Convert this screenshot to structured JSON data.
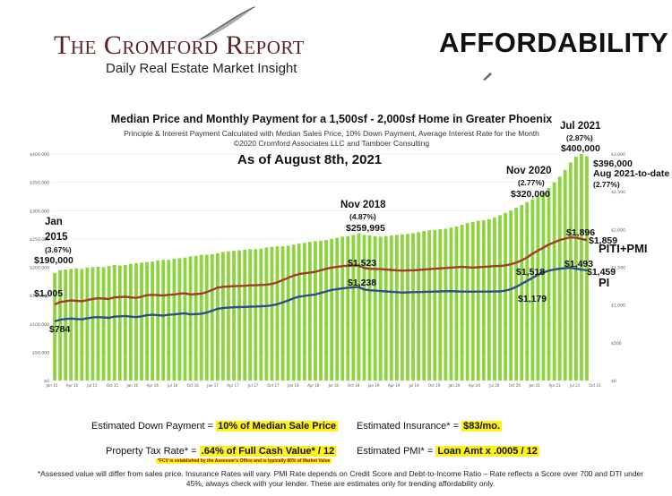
{
  "header": {
    "report_title": "The Cromford Report",
    "report_subtitle": "Daily Real Estate Market Insight",
    "page_heading": "AFFORDABILITY",
    "logo_icon": "quill-pen-icon"
  },
  "colors": {
    "price_bar": "#8cd43c",
    "piti_line": "#a33a2e",
    "pi_line": "#2e4d8a",
    "highlight": "#fff21a"
  },
  "chart_data": {
    "type": "bar",
    "title": "Median Price and Monthly Payment for a 1,500sf - 2,000sf Home in Greater Phoenix",
    "subtitle_lines": [
      "Principle & Interest Payment Calculated with Median Sales Price, 10% Down Payment, Average Interest Rate for the Month",
      "©2020 Cromford Associates LLC and Tamboer Consulting"
    ],
    "as_of": "As of August 8th, 2021",
    "left_axis": {
      "ylim": [
        0,
        400000
      ],
      "ticks": [
        "$0",
        "$50,000",
        "$100,000",
        "$150,000",
        "$200,000",
        "$250,000",
        "$300,000",
        "$350,000",
        "$400,000"
      ]
    },
    "right_axis": {
      "ylim": [
        0,
        3000
      ],
      "ticks": [
        "$0",
        "$500",
        "$1,000",
        "$1,500",
        "$2,000",
        "$2,500",
        "$3,000"
      ]
    },
    "x_tick_labels": [
      "Jan 15",
      "Apr 15",
      "Jul 15",
      "Oct 15",
      "Jan 16",
      "Apr 16",
      "Jul 16",
      "Oct 16",
      "Jan 17",
      "Apr 17",
      "Jul 17",
      "Oct 17",
      "Jan 18",
      "Apr 18",
      "Jul 18",
      "Oct 18",
      "Jan 19",
      "Apr 19",
      "Jul 19",
      "Oct 19",
      "Jan 20",
      "Apr 20",
      "Jul 20",
      "Oct 20",
      "Jan 21",
      "Apr 21",
      "Jul 21",
      "Oct 21"
    ],
    "series": [
      {
        "name": "Median Sales Price",
        "axis": "left",
        "values": [
          190000,
          195000,
          196000,
          197000,
          198000,
          197000,
          199000,
          200000,
          201000,
          200000,
          202000,
          204000,
          203000,
          204000,
          206000,
          207000,
          208000,
          209000,
          210000,
          212000,
          213000,
          213000,
          215000,
          216000,
          217000,
          219000,
          220000,
          222000,
          222000,
          223000,
          225000,
          227000,
          228000,
          229000,
          230000,
          231000,
          232000,
          232000,
          233000,
          235000,
          236000,
          237000,
          237000,
          238000,
          240000,
          242000,
          243000,
          245000,
          246000,
          247000,
          248000,
          250000,
          252000,
          254000,
          255000,
          257000,
          259995,
          257000,
          256000,
          255000,
          254000,
          255000,
          256000,
          257000,
          258000,
          259000,
          260000,
          262000,
          264000,
          265000,
          266000,
          267000,
          268000,
          270000,
          272000,
          275000,
          278000,
          280000,
          282000,
          283000,
          285000,
          288000,
          292000,
          296000,
          300000,
          305000,
          310000,
          315000,
          320000,
          325000,
          332000,
          340000,
          350000,
          360000,
          372000,
          385000,
          395000,
          400000,
          396000
        ]
      },
      {
        "name": "PITI+PMI",
        "axis": "right",
        "values": [
          1005,
          1040,
          1050,
          1060,
          1055,
          1050,
          1065,
          1080,
          1090,
          1085,
          1080,
          1100,
          1105,
          1110,
          1100,
          1095,
          1110,
          1130,
          1135,
          1130,
          1125,
          1135,
          1140,
          1150,
          1155,
          1140,
          1145,
          1150,
          1170,
          1200,
          1230,
          1240,
          1245,
          1250,
          1252,
          1255,
          1260,
          1262,
          1265,
          1270,
          1280,
          1300,
          1330,
          1360,
          1390,
          1410,
          1420,
          1430,
          1440,
          1460,
          1480,
          1495,
          1505,
          1515,
          1520,
          1522,
          1523,
          1490,
          1480,
          1478,
          1475,
          1470,
          1465,
          1460,
          1455,
          1458,
          1460,
          1465,
          1470,
          1475,
          1480,
          1485,
          1490,
          1495,
          1500,
          1505,
          1500,
          1495,
          1500,
          1505,
          1510,
          1515,
          1518,
          1525,
          1540,
          1560,
          1590,
          1630,
          1680,
          1720,
          1760,
          1800,
          1830,
          1860,
          1880,
          1896,
          1890,
          1875,
          1859
        ]
      },
      {
        "name": "PI",
        "axis": "right",
        "values": [
          784,
          805,
          815,
          820,
          815,
          810,
          825,
          835,
          840,
          835,
          830,
          845,
          850,
          855,
          845,
          840,
          850,
          865,
          870,
          865,
          860,
          870,
          875,
          885,
          890,
          875,
          880,
          885,
          900,
          925,
          950,
          960,
          965,
          970,
          972,
          975,
          978,
          980,
          983,
          987,
          995,
          1010,
          1035,
          1060,
          1090,
          1110,
          1120,
          1130,
          1140,
          1160,
          1180,
          1200,
          1210,
          1220,
          1228,
          1234,
          1238,
          1205,
          1195,
          1190,
          1185,
          1180,
          1175,
          1170,
          1165,
          1168,
          1170,
          1172,
          1174,
          1176,
          1178,
          1180,
          1182,
          1183,
          1180,
          1178,
          1177,
          1176,
          1177,
          1178,
          1178,
          1179,
          1180,
          1190,
          1210,
          1240,
          1280,
          1320,
          1360,
          1400,
          1430,
          1455,
          1470,
          1480,
          1488,
          1493,
          1480,
          1470,
          1459
        ]
      }
    ],
    "annotations": {
      "jan2015_date": "Jan",
      "jan2015_year": "2015",
      "jan2015_rate": "(3.67%)",
      "jan2015_price": "$190,000",
      "jan2015_piti": "$1,005",
      "jan2015_pi": "$784",
      "nov2018_date": "Nov 2018",
      "nov2018_rate": "(4.87%)",
      "nov2018_price": "$259,995",
      "nov2018_piti": "$1,523",
      "nov2018_pi": "$1,238",
      "nov2020_date": "Nov 2020",
      "nov2020_rate": "(2.77%)",
      "nov2020_price": "$320,000",
      "nov2020_piti": "$1,518",
      "nov2020_pi": "$1,179",
      "jul2021_date": "Jul 2021",
      "jul2021_rate": "(2.87%)",
      "jul2021_price": "$400,000",
      "jul2021_piti": "$1,896",
      "jul2021_pi": "$1,493",
      "ytd_price": "$396,000",
      "ytd_label": "Aug 2021-to-date",
      "ytd_rate": "(2.77%)",
      "ytd_piti": "$1,859",
      "ytd_pi": "$1,459",
      "label_piti": "PITI+PMI",
      "label_pi": "PI"
    }
  },
  "formulas": {
    "down_payment_label": "Estimated Down Payment = ",
    "down_payment_value": "10% of Median Sale Price",
    "insurance_label": "Estimated Insurance* = ",
    "insurance_value": "$83/mo.",
    "tax_label": "Property Tax Rate* = ",
    "tax_value": ".64% of Full Cash Value* / 12",
    "tax_footnote": "*FCV is established by the Assessor's Office and is typically 80% of Market Value",
    "pmi_label": "Estimated PMI* = ",
    "pmi_value": "Loan Amt x .0005 / 12"
  },
  "disclaimer": "*Assessed value will differ from sales price. Insurance Rates will vary. PMI Rate depends on Credit Score and Debt-to-Income Ratio – Rate reflects a Score over 700 and DTI under 45%, always check with your lender.  These are estimates only for trending affordability only."
}
